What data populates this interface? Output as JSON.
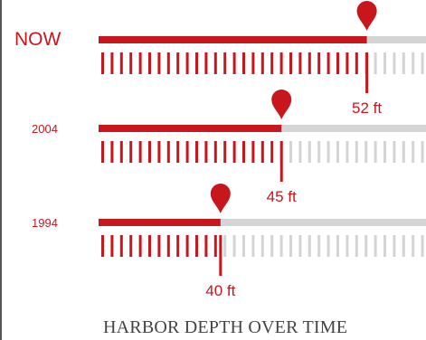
{
  "chart_data": {
    "type": "bar",
    "title": "HARBOR DEPTH OVER TIME",
    "categories": [
      "NOW",
      "2004",
      "1994"
    ],
    "values": [
      52,
      45,
      40
    ],
    "value_labels": [
      "52 ft",
      "45 ft",
      "40 ft"
    ],
    "unit": "ft",
    "xlim": [
      30,
      57
    ],
    "legend": "none",
    "grid": false
  },
  "colors": {
    "accent": "#c8161d",
    "track": "#d4d4d4",
    "tick_inactive": "#d4d4d4",
    "label_now": "#c8161d",
    "label_past": "#c8161d",
    "title": "#444444"
  },
  "icons": {
    "marker": "map-pin-icon"
  }
}
